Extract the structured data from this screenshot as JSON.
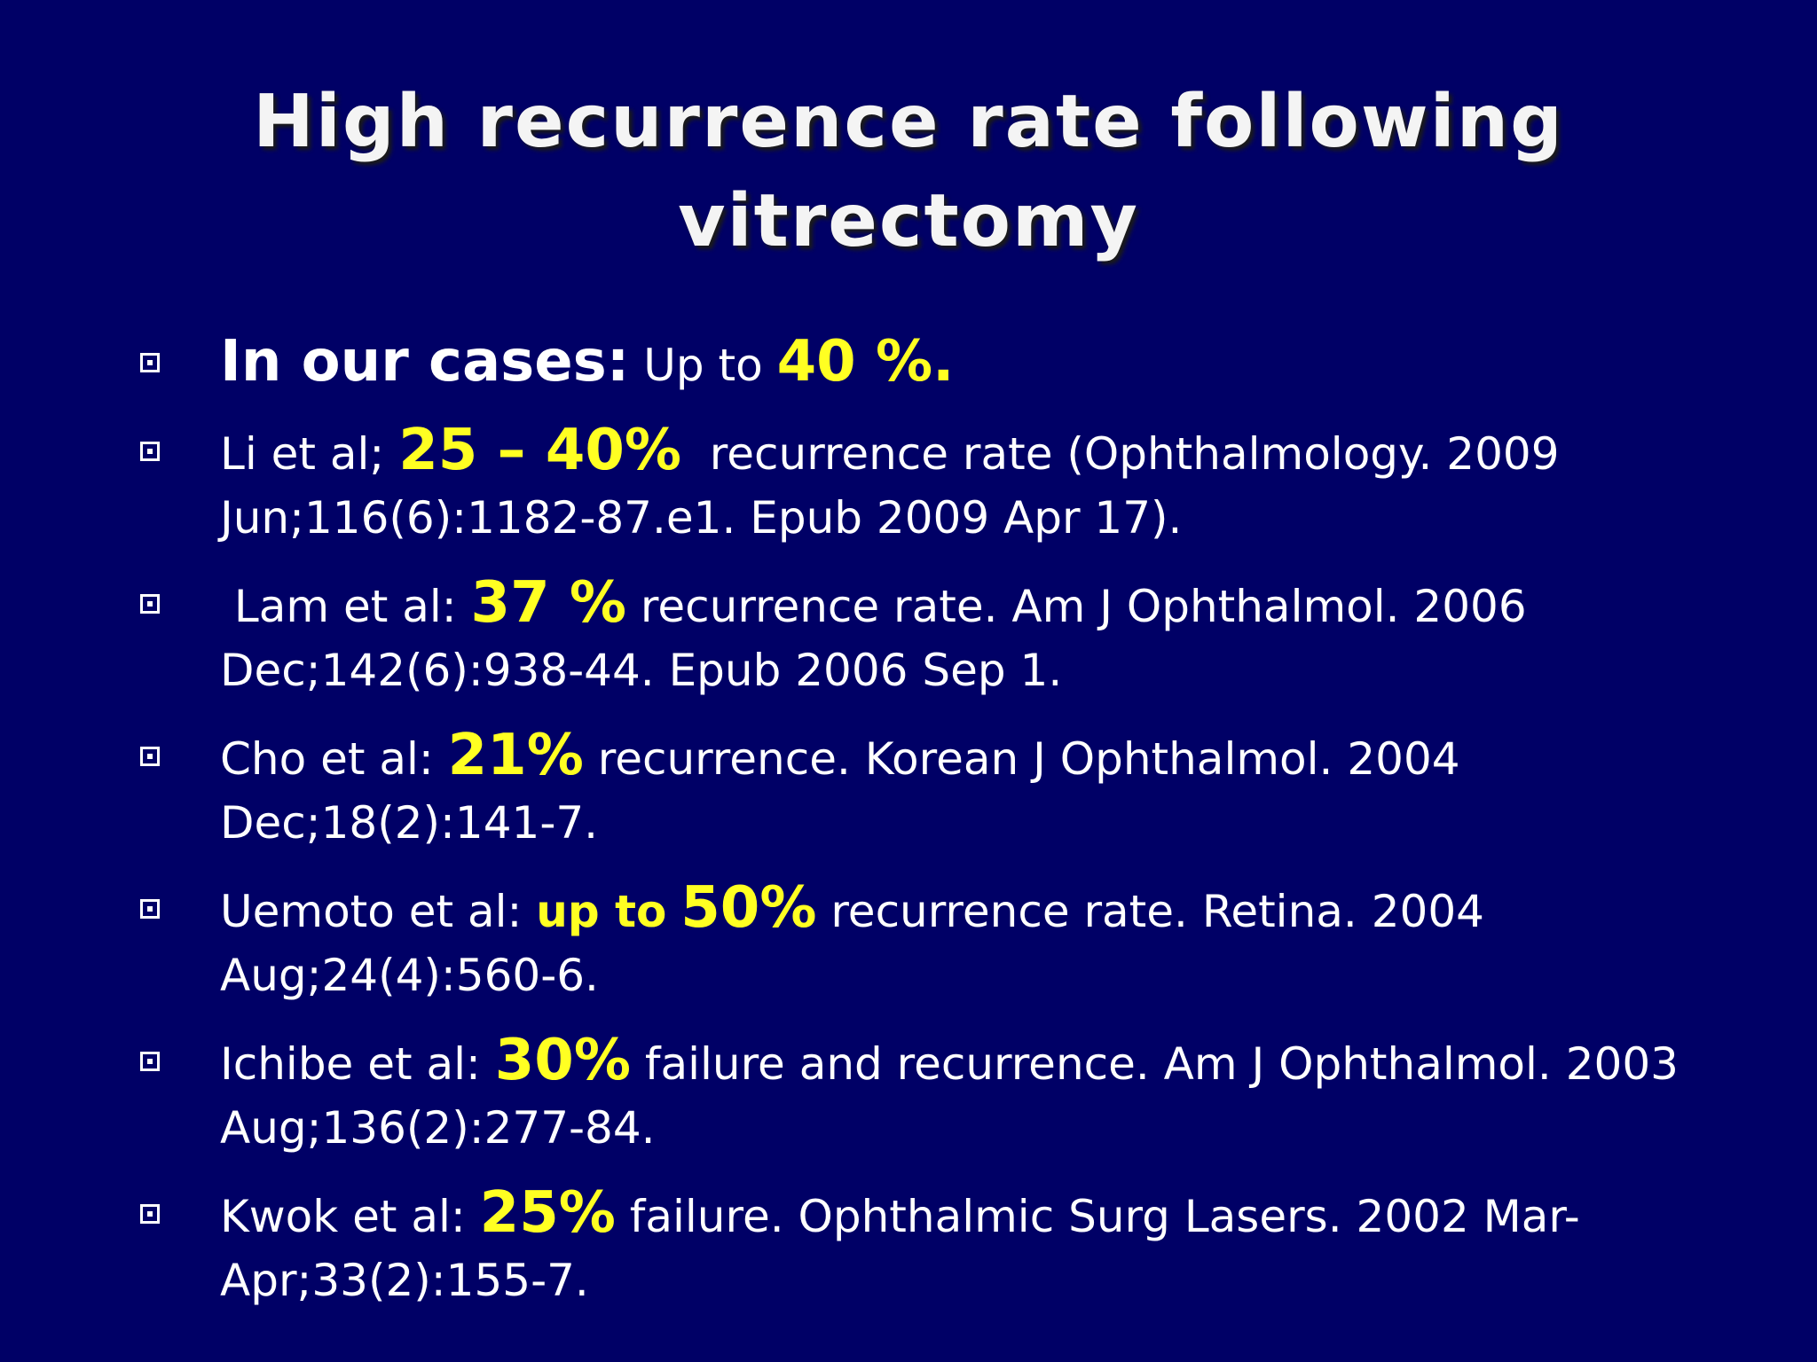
{
  "title": "High recurrence rate following vitrectomy",
  "bullets": [
    [
      "In our cases:",
      "Up to",
      "40 %."
    ],
    [
      "Li et al;",
      "25 – 40%",
      "recurrence rate (Ophthalmology. 2009 Jun;116(6):1182-87.e1. Epub 2009 Apr 17)."
    ],
    [
      "Lam et al:",
      "37 %",
      "recurrence rate. Am J Ophthalmol. 2006 Dec;142(6):938-44. Epub 2006 Sep 1."
    ],
    [
      "Cho et al:",
      "21%",
      "recurrence. Korean J Ophthalmol. 2004 Dec;18(2):141-7."
    ],
    [
      "Uemoto et al:",
      "up to",
      "50%",
      "recurrence rate. Retina. 2004 Aug;24(4):560-6."
    ],
    [
      "Ichibe et al:",
      "30%",
      "failure and recurrence. Am J Ophthalmol. 2003 Aug;136(2):277-84."
    ],
    [
      "Kwok et al:",
      "25%",
      "failure. Ophthalmic Surg Lasers. 2002 Mar-Apr;33(2):155-7."
    ]
  ]
}
